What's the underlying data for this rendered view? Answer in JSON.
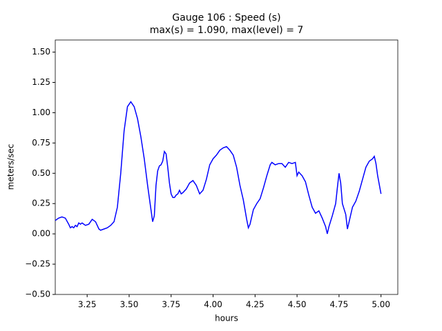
{
  "chart_data": {
    "type": "line",
    "title": "Gauge 106 : Speed (s)",
    "subtitle": "max(s) =   1.090,    max(level) = 7",
    "xlabel": "hours",
    "ylabel": "meters/sec",
    "xlim": [
      3.06,
      5.1
    ],
    "ylim": [
      -0.5,
      1.6
    ],
    "xticks": [
      3.25,
      {
        "value": 3.5,
        "label": "3.50"
      },
      3.75,
      {
        "value": 4,
        "label": "4.00"
      },
      4.25,
      {
        "value": 4.5,
        "label": "4.50"
      },
      4.75,
      {
        "value": 5,
        "label": "5.00"
      }
    ],
    "yticks": [
      {
        "value": -0.5,
        "label": "−0.50"
      },
      {
        "value": -0.25,
        "label": "−0.25"
      },
      {
        "value": 0,
        "label": "0.00"
      },
      0.25,
      {
        "value": 0.5,
        "label": "0.50"
      },
      0.75,
      {
        "value": 1,
        "label": "1.00"
      },
      1.25,
      {
        "value": 1.5,
        "label": "1.50"
      }
    ],
    "x": [
      3.06,
      3.08,
      3.1,
      3.12,
      3.14,
      3.15,
      3.16,
      3.17,
      3.18,
      3.19,
      3.2,
      3.21,
      3.22,
      3.24,
      3.26,
      3.28,
      3.3,
      3.32,
      3.33,
      3.35,
      3.37,
      3.39,
      3.41,
      3.43,
      3.45,
      3.47,
      3.49,
      3.51,
      3.53,
      3.55,
      3.57,
      3.59,
      3.61,
      3.63,
      3.64,
      3.65,
      3.66,
      3.67,
      3.68,
      3.69,
      3.7,
      3.71,
      3.72,
      3.73,
      3.74,
      3.75,
      3.76,
      3.77,
      3.78,
      3.79,
      3.8,
      3.81,
      3.82,
      3.84,
      3.86,
      3.88,
      3.9,
      3.92,
      3.94,
      3.96,
      3.98,
      4.0,
      4.02,
      4.04,
      4.06,
      4.08,
      4.1,
      4.12,
      4.14,
      4.16,
      4.18,
      4.2,
      4.21,
      4.22,
      4.24,
      4.26,
      4.28,
      4.3,
      4.32,
      4.34,
      4.35,
      4.37,
      4.39,
      4.41,
      4.43,
      4.45,
      4.47,
      4.49,
      4.5,
      4.51,
      4.53,
      4.55,
      4.57,
      4.59,
      4.61,
      4.63,
      4.65,
      4.67,
      4.68,
      4.69,
      4.71,
      4.73,
      4.74,
      4.75,
      4.76,
      4.77,
      4.79,
      4.8,
      4.81,
      4.83,
      4.85,
      4.87,
      4.89,
      4.91,
      4.93,
      4.95,
      4.96,
      4.97,
      4.98,
      5.0
    ],
    "series": [
      {
        "name": "speed",
        "color": "#0000ff",
        "values": [
          0.11,
          0.13,
          0.14,
          0.13,
          0.08,
          0.05,
          0.06,
          0.05,
          0.07,
          0.06,
          0.09,
          0.08,
          0.09,
          0.07,
          0.08,
          0.12,
          0.1,
          0.04,
          0.03,
          0.04,
          0.05,
          0.07,
          0.1,
          0.22,
          0.5,
          0.85,
          1.05,
          1.09,
          1.05,
          0.95,
          0.8,
          0.62,
          0.4,
          0.2,
          0.1,
          0.15,
          0.4,
          0.52,
          0.56,
          0.57,
          0.6,
          0.68,
          0.66,
          0.55,
          0.42,
          0.33,
          0.3,
          0.3,
          0.32,
          0.33,
          0.36,
          0.33,
          0.34,
          0.37,
          0.42,
          0.44,
          0.4,
          0.33,
          0.36,
          0.45,
          0.57,
          0.62,
          0.65,
          0.69,
          0.71,
          0.72,
          0.69,
          0.65,
          0.55,
          0.4,
          0.28,
          0.12,
          0.05,
          0.08,
          0.2,
          0.25,
          0.29,
          0.38,
          0.48,
          0.57,
          0.59,
          0.57,
          0.58,
          0.58,
          0.55,
          0.59,
          0.58,
          0.59,
          0.48,
          0.51,
          0.48,
          0.43,
          0.32,
          0.22,
          0.17,
          0.19,
          0.13,
          0.06,
          0.0,
          0.06,
          0.15,
          0.25,
          0.38,
          0.5,
          0.42,
          0.25,
          0.16,
          0.04,
          0.1,
          0.22,
          0.27,
          0.35,
          0.45,
          0.55,
          0.6,
          0.62,
          0.64,
          0.58,
          0.48,
          0.33
        ]
      }
    ]
  }
}
